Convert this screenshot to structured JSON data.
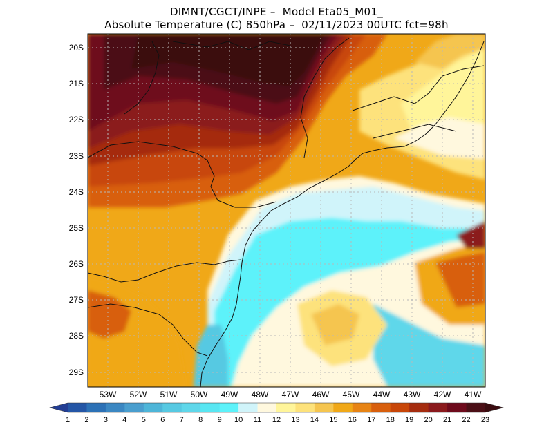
{
  "title": {
    "line1": "DIMNT/CGCT/INPE –  Model Eta05_M01_",
    "line2": "Absolute Temperature (C) 850hPa –  02/11/2023 00UTC fct=98h"
  },
  "map": {
    "lat_labels": [
      "20S",
      "21S",
      "22S",
      "23S",
      "24S",
      "25S",
      "26S",
      "27S",
      "28S",
      "29S"
    ],
    "lon_labels": [
      "53W",
      "52W",
      "51W",
      "50W",
      "49W",
      "48W",
      "47W",
      "46W",
      "45W",
      "44W",
      "43W",
      "42W",
      "41W"
    ]
  },
  "colorbar": {
    "labels": [
      "1",
      "2",
      "3",
      "4",
      "5",
      "6",
      "7",
      "8",
      "9",
      "10",
      "11",
      "12",
      "13",
      "14",
      "15",
      "16",
      "17",
      "18",
      "19",
      "20",
      "21",
      "22",
      "23"
    ],
    "colors": [
      "#233e94",
      "#2456a6",
      "#2c71b6",
      "#3b87c2",
      "#4a9ece",
      "#4eb5d8",
      "#57c9e2",
      "#5fd7ea",
      "#58e6f2",
      "#5df2fa",
      "#d0f4fa",
      "#fff8de",
      "#fff59a",
      "#fde27b",
      "#f5c54f",
      "#f0a818",
      "#e78415",
      "#d85f0d",
      "#c84608",
      "#a52c0f",
      "#8b1a1d",
      "#6e0a1c",
      "#4b0f16",
      "#3a0c10"
    ]
  }
}
